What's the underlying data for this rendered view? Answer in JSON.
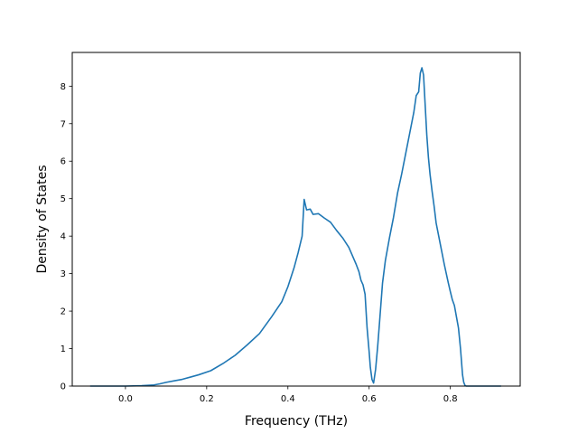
{
  "chart_data": {
    "type": "line",
    "title": "",
    "xlabel": "Frequency (THz)",
    "ylabel": "Density of States",
    "xlim": [
      -0.131,
      0.972
    ],
    "ylim": [
      0,
      8.9
    ],
    "grid": false,
    "xticks": [
      0.0,
      0.2,
      0.4,
      0.6,
      0.8
    ],
    "xtick_labels": [
      "0.0",
      "0.2",
      "0.4",
      "0.6",
      "0.8"
    ],
    "yticks": [
      0,
      1,
      2,
      3,
      4,
      5,
      6,
      7,
      8
    ],
    "ytick_labels": [
      "0",
      "1",
      "2",
      "3",
      "4",
      "5",
      "6",
      "7",
      "8"
    ],
    "series": [
      {
        "color": "#1f77b4",
        "x": [
          -0.087,
          -0.04,
          0.0,
          0.04,
          0.07,
          0.085,
          0.1,
          0.12,
          0.14,
          0.16,
          0.18,
          0.21,
          0.24,
          0.27,
          0.3,
          0.33,
          0.36,
          0.385,
          0.4,
          0.415,
          0.425,
          0.435,
          0.44,
          0.446,
          0.455,
          0.462,
          0.475,
          0.49,
          0.505,
          0.52,
          0.535,
          0.55,
          0.56,
          0.568,
          0.575,
          0.58,
          0.585,
          0.59,
          0.595,
          0.6,
          0.603,
          0.607,
          0.611,
          0.616,
          0.621,
          0.626,
          0.633,
          0.64,
          0.65,
          0.66,
          0.67,
          0.68,
          0.69,
          0.7,
          0.71,
          0.716,
          0.722,
          0.726,
          0.73,
          0.734,
          0.738,
          0.742,
          0.746,
          0.75,
          0.755,
          0.76,
          0.765,
          0.775,
          0.785,
          0.795,
          0.8,
          0.805,
          0.81,
          0.815,
          0.82,
          0.825,
          0.83,
          0.833,
          0.836,
          0.839,
          0.842,
          0.85,
          0.87,
          0.9,
          0.925
        ],
        "y": [
          0.0,
          0.0,
          0.0,
          0.01,
          0.03,
          0.06,
          0.1,
          0.14,
          0.18,
          0.24,
          0.3,
          0.41,
          0.6,
          0.82,
          1.1,
          1.4,
          1.85,
          2.25,
          2.65,
          3.15,
          3.55,
          4.0,
          4.98,
          4.7,
          4.72,
          4.58,
          4.6,
          4.48,
          4.37,
          4.15,
          3.95,
          3.7,
          3.45,
          3.25,
          3.05,
          2.82,
          2.7,
          2.45,
          1.55,
          0.92,
          0.5,
          0.18,
          0.08,
          0.45,
          1.05,
          1.75,
          2.75,
          3.35,
          3.95,
          4.5,
          5.15,
          5.65,
          6.2,
          6.75,
          7.3,
          7.75,
          7.85,
          8.35,
          8.49,
          8.3,
          7.5,
          6.7,
          6.1,
          5.65,
          5.2,
          4.8,
          4.35,
          3.8,
          3.25,
          2.75,
          2.52,
          2.3,
          2.15,
          1.85,
          1.55,
          1.0,
          0.3,
          0.1,
          0.02,
          0.0,
          0.0,
          0.0,
          0.0,
          0.0,
          0.0
        ]
      }
    ]
  }
}
